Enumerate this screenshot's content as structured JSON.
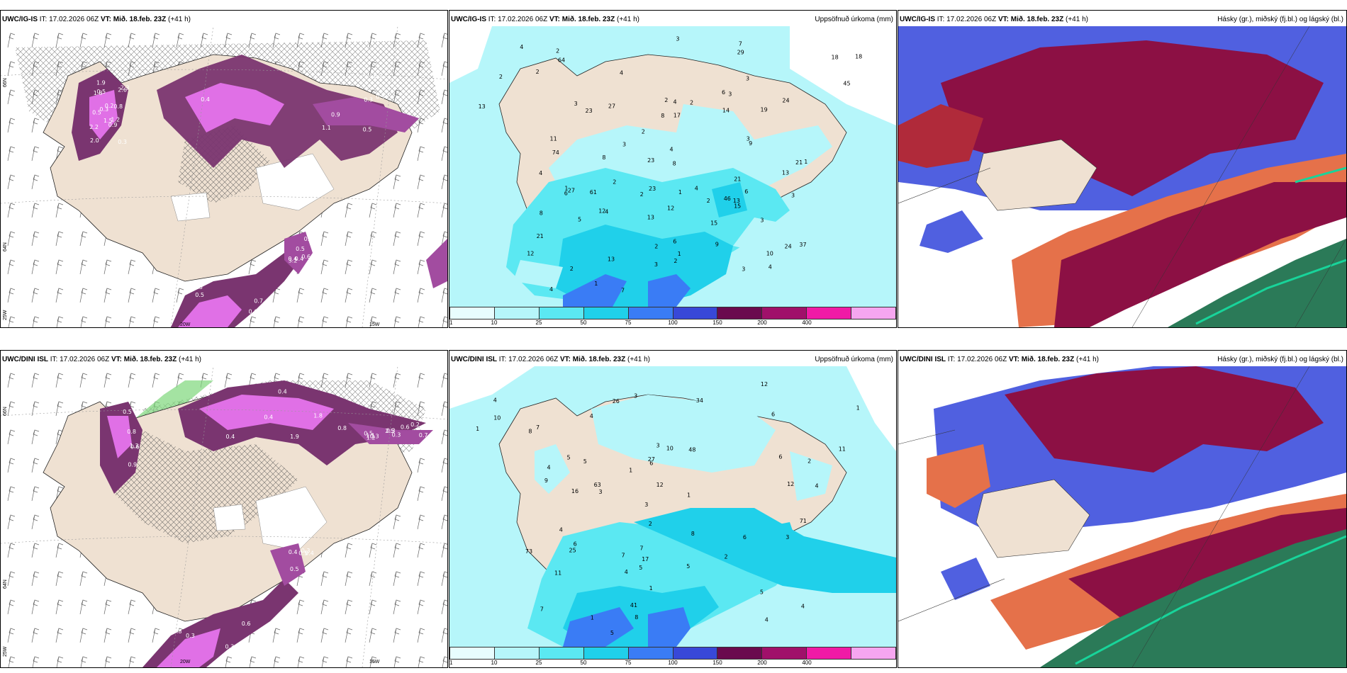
{
  "colors": {
    "land": "#efe1d2",
    "purple_dark": "#7a3570",
    "purple_mid": "#a24ca0",
    "magenta": "#e070e6",
    "cyan_light": "#b6f6fa",
    "cyan": "#5be8f2",
    "cyan_mid": "#20d0ea",
    "blue": "#3a7cf5",
    "blue_mid": "#5060e0",
    "maroon": "#8c1044",
    "red": "#b02a3a",
    "orange": "#e5714a",
    "green": "#2b7a58",
    "green_bright": "#18d49a",
    "white": "#ffffff"
  },
  "rows": [
    {
      "model": "UWC/IG-IS",
      "it_label": "IT:",
      "it": "17.02.2026 06Z",
      "vt_label": "VT:",
      "vt": "Mið. 18.feb. 23Z",
      "lead": "(+41 h)",
      "left_ticks": {
        "lat1": "66N",
        "lat2": "64N",
        "lon_left": "25W",
        "lon1": "20W",
        "lon2": "15W"
      },
      "left_values": [
        "0.1",
        "2.6",
        "1.5",
        "2.0",
        "0.5",
        "2.2",
        "1.9",
        "3.2",
        "0.9",
        "1.2",
        "0.4",
        "0.5",
        "0.6",
        "0.3",
        "0.8",
        "1.8",
        "0.5",
        "0.3",
        "0.6",
        "0.5",
        "0.5",
        "0.9",
        "0.3",
        "0.2",
        "0.3",
        "0.5",
        "1.1",
        "2.3",
        "0.7",
        "0.4",
        "0.7",
        "0.4",
        "0.5"
      ],
      "precip_title": "Uppsöfnuð úrkoma (mm)",
      "precip_values": [
        "1",
        "1",
        "3",
        "4",
        "4",
        "2",
        "2",
        "2",
        "4",
        "2",
        "8",
        "3",
        "3",
        "6",
        "12",
        "1",
        "4",
        "4",
        "7",
        "3",
        "8",
        "3",
        "8",
        "9",
        "13",
        "15",
        "10",
        "9",
        "15",
        "12",
        "6",
        "4",
        "2",
        "3",
        "7",
        "3",
        "3",
        "4",
        "2",
        "2",
        "4",
        "5",
        "2",
        "4",
        "1",
        "6",
        "3",
        "2",
        "2",
        "3",
        "1",
        "11",
        "14",
        "19",
        "13",
        "13",
        "12",
        "21",
        "24",
        "18",
        "13",
        "24",
        "23",
        "21",
        "27",
        "21",
        "45",
        "23",
        "61",
        "23",
        "64",
        "74",
        "27",
        "17",
        "18",
        "13",
        "8",
        "37",
        "29",
        "46",
        "6",
        "2",
        "2"
      ],
      "cloud_title": "Hásky (gr.), miðský (fj.bl.) og lágský (bl.)"
    },
    {
      "model": "UWC/DINI ISL",
      "it_label": "IT:",
      "it": "17.02.2026 06Z",
      "vt_label": "VT:",
      "vt": "Mið. 18.feb. 23Z",
      "lead": "(+41 h)",
      "left_ticks": {
        "lat1": "66N",
        "lat2": "64N",
        "lon_left": "25W",
        "lon1": "20W",
        "lon2": "15W"
      },
      "left_values": [
        "0.4",
        "0.3",
        "0.4",
        "0.8",
        "0.3",
        "0.6",
        "1.1",
        "0.9",
        "0.8",
        "1.8",
        "0.8",
        "2.5",
        "0.4",
        "0.3",
        "1.2",
        "0.7",
        "0.4",
        "0.5",
        "0.3",
        "0.2",
        "0.6",
        "0.3",
        "0.3",
        "1.3",
        "0.5",
        "0.5",
        "0.4",
        "0.3",
        "0.6",
        "0.4",
        "1.9",
        "0.5"
      ],
      "precip_title": "Uppsöfnuð úrkoma (mm)",
      "precip_values": [
        "1",
        "1",
        "1",
        "16",
        "7",
        "10",
        "3",
        "4",
        "4",
        "8",
        "4",
        "6",
        "7",
        "11",
        "10",
        "12",
        "12",
        "12",
        "8",
        "7",
        "5",
        "8",
        "3",
        "4",
        "4",
        "3",
        "5",
        "5",
        "2",
        "3",
        "1",
        "2",
        "4",
        "6",
        "1",
        "6",
        "4",
        "5",
        "2",
        "3",
        "4",
        "5",
        "6",
        "9",
        "7",
        "1",
        "6",
        "27",
        "41",
        "34",
        "26",
        "25",
        "17",
        "48",
        "71",
        "73",
        "63",
        "11",
        "5"
      ],
      "cloud_title": "Hásky (gr.), miðský (fj.bl.) og lágský (bl.)"
    }
  ],
  "colorbar": {
    "colors": [
      "#e8fdfe",
      "#b6f6fa",
      "#5be8f2",
      "#20d0ea",
      "#3a7cf5",
      "#3848d8",
      "#6a0a4e",
      "#a0106a",
      "#f01aa6",
      "#f6a6f0"
    ],
    "labels": [
      "1",
      "10",
      "25",
      "50",
      "75",
      "100",
      "150",
      "200",
      "400"
    ]
  }
}
